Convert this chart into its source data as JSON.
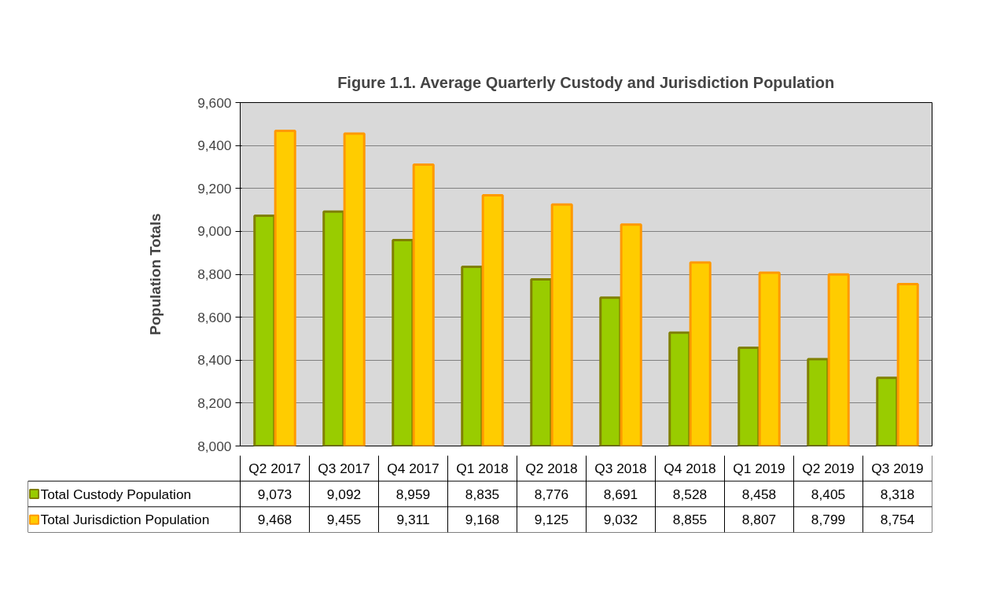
{
  "chart_data": {
    "type": "bar",
    "title": "Figure 1.1. Average Quarterly Custody and Jurisdiction Population",
    "ylabel": "Population Totals",
    "categories": [
      "Q2 2017",
      "Q3 2017",
      "Q4 2017",
      "Q1 2018",
      "Q2 2018",
      "Q3 2018",
      "Q4 2018",
      "Q1 2019",
      "Q2 2019",
      "Q3 2019"
    ],
    "series": [
      {
        "name": "Total Custody Population",
        "color": "#99cc00",
        "values": [
          9073,
          9092,
          8959,
          8835,
          8776,
          8691,
          8528,
          8458,
          8405,
          8318
        ],
        "value_labels": [
          "9,073",
          "9,092",
          "8,959",
          "8,835",
          "8,776",
          "8,691",
          "8,528",
          "8,458",
          "8,405",
          "8,318"
        ]
      },
      {
        "name": "Total Jurisdiction Population",
        "color": "#ffcc00",
        "values": [
          9468,
          9455,
          9311,
          9168,
          9125,
          9032,
          8855,
          8807,
          8799,
          8754
        ],
        "value_labels": [
          "9,468",
          "9,455",
          "9,311",
          "9,168",
          "9,125",
          "9,032",
          "8,855",
          "8,807",
          "8,799",
          "8,754"
        ]
      }
    ],
    "ylim": [
      8000,
      9600
    ],
    "yticks": [
      {
        "value": 8000,
        "label": "8,000"
      },
      {
        "value": 8200,
        "label": "8,200"
      },
      {
        "value": 8400,
        "label": "8,400"
      },
      {
        "value": 8600,
        "label": "8,600"
      },
      {
        "value": 8800,
        "label": "8,800"
      },
      {
        "value": 9000,
        "label": "9,000"
      },
      {
        "value": 9200,
        "label": "9,200"
      },
      {
        "value": 9400,
        "label": "9,400"
      },
      {
        "value": 9600,
        "label": "9,600"
      }
    ],
    "grid": "y",
    "legend": "bottom"
  }
}
